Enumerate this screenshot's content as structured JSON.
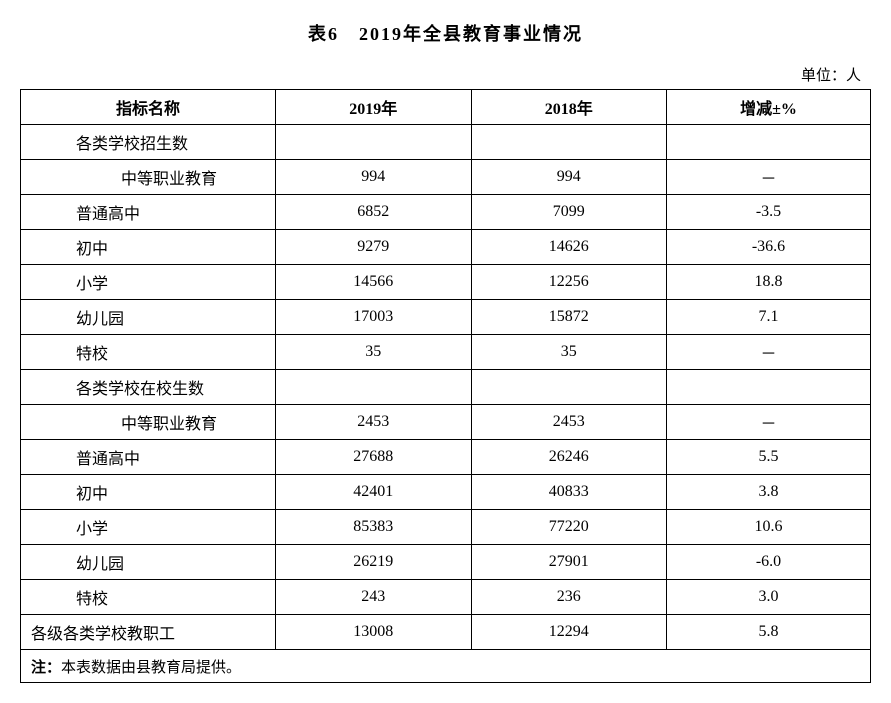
{
  "title": "表6　2019年全县教育事业情况",
  "unit": "单位：人",
  "table": {
    "columns": [
      "指标名称",
      "2019年",
      "2018年",
      "增减±%"
    ],
    "rows": [
      {
        "label": "各类学校招生数",
        "indent": 1,
        "y2019": "",
        "y2018": "",
        "delta": ""
      },
      {
        "label": "中等职业教育",
        "indent": 2,
        "y2019": "994",
        "y2018": "994",
        "delta": "－"
      },
      {
        "label": "普通高中",
        "indent": 1,
        "y2019": "6852",
        "y2018": "7099",
        "delta": "-3.5"
      },
      {
        "label": "初中",
        "indent": 1,
        "y2019": "9279",
        "y2018": "14626",
        "delta": "-36.6"
      },
      {
        "label": "小学",
        "indent": 1,
        "y2019": "14566",
        "y2018": "12256",
        "delta": "18.8"
      },
      {
        "label": "幼儿园",
        "indent": 1,
        "y2019": "17003",
        "y2018": "15872",
        "delta": "7.1"
      },
      {
        "label": "特校",
        "indent": 1,
        "y2019": "35",
        "y2018": "35",
        "delta": "－"
      },
      {
        "label": "各类学校在校生数",
        "indent": 1,
        "y2019": "",
        "y2018": "",
        "delta": ""
      },
      {
        "label": "中等职业教育",
        "indent": 2,
        "y2019": "2453",
        "y2018": "2453",
        "delta": "－"
      },
      {
        "label": "普通高中",
        "indent": 1,
        "y2019": "27688",
        "y2018": "26246",
        "delta": "5.5"
      },
      {
        "label": "初中",
        "indent": 1,
        "y2019": "42401",
        "y2018": "40833",
        "delta": "3.8"
      },
      {
        "label": "小学",
        "indent": 1,
        "y2019": "85383",
        "y2018": "77220",
        "delta": "10.6"
      },
      {
        "label": "幼儿园",
        "indent": 1,
        "y2019": "26219",
        "y2018": "27901",
        "delta": "-6.0"
      },
      {
        "label": "特校",
        "indent": 1,
        "y2019": "243",
        "y2018": "236",
        "delta": "3.0"
      },
      {
        "label": "各级各类学校教职工",
        "indent": 0,
        "y2019": "13008",
        "y2018": "12294",
        "delta": "5.8"
      }
    ],
    "footnote_label": "注：",
    "footnote_text": "本表数据由县教育局提供。"
  },
  "style": {
    "font_family": "SimSun",
    "title_fontsize": 18,
    "cell_fontsize": 16,
    "border_color": "#000000",
    "background_color": "#ffffff",
    "text_color": "#000000"
  }
}
